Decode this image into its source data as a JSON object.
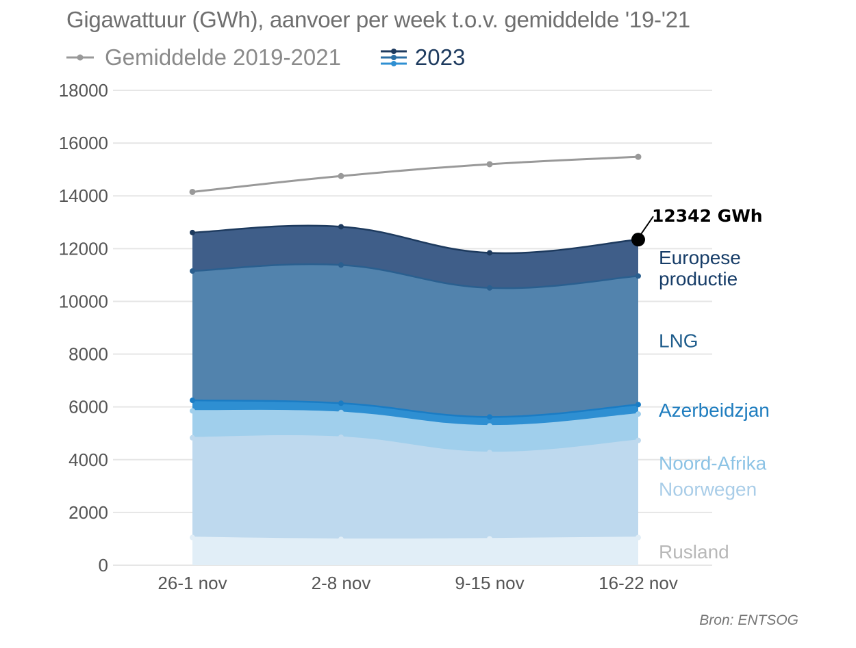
{
  "title": "Gigawattuur (GWh), aanvoer per week t.o.v. gemiddelde '19-'21",
  "legend": {
    "average_label": "Gemiddelde 2019-2021",
    "current_label": "2023"
  },
  "source": "Bron: ENTSOG",
  "total_label": "12342 GWh",
  "colors": {
    "average_line": "#999999",
    "Rusland": "#e1eef7",
    "Noorwegen": "#bed9ee",
    "Noord-Afrika": "#a0cfec",
    "Azerbeidzjan": "#2e8fd2",
    "LNG": "#5283ad",
    "Europese productie": "#3f5e89"
  },
  "chart_data": {
    "type": "area",
    "stacked": true,
    "categories": [
      "26-1 nov",
      "2-8 nov",
      "9-15 nov",
      "16-22 nov"
    ],
    "ylim": [
      0,
      18000
    ],
    "yticks": [
      0,
      2000,
      4000,
      6000,
      8000,
      10000,
      12000,
      14000,
      16000,
      18000
    ],
    "grid": true,
    "series": [
      {
        "name": "Rusland",
        "values": [
          1050,
          980,
          1000,
          1050
        ],
        "label_color": "#b8b8b8"
      },
      {
        "name": "Noorwegen",
        "values": [
          3780,
          3870,
          3270,
          3680
        ],
        "label_color": "#a9cde8"
      },
      {
        "name": "Noord-Afrika",
        "values": [
          1020,
          940,
          1010,
          1000
        ],
        "label_color": "#8cc3e5"
      },
      {
        "name": "Azerbeidzjan",
        "values": [
          400,
          350,
          340,
          360
        ],
        "label_color": "#1f7dbf"
      },
      {
        "name": "LNG",
        "values": [
          4900,
          5240,
          4890,
          4870
        ],
        "label_color": "#1f5d8c"
      },
      {
        "name": "Europese productie",
        "values": [
          1460,
          1450,
          1330,
          1382
        ],
        "label_color": "#173d68",
        "label_lines": [
          "Europese",
          "productie"
        ]
      }
    ],
    "average": {
      "name": "Gemiddelde 2019-2021",
      "values": [
        14150,
        14750,
        15200,
        15480
      ]
    },
    "total_last": 12342
  }
}
